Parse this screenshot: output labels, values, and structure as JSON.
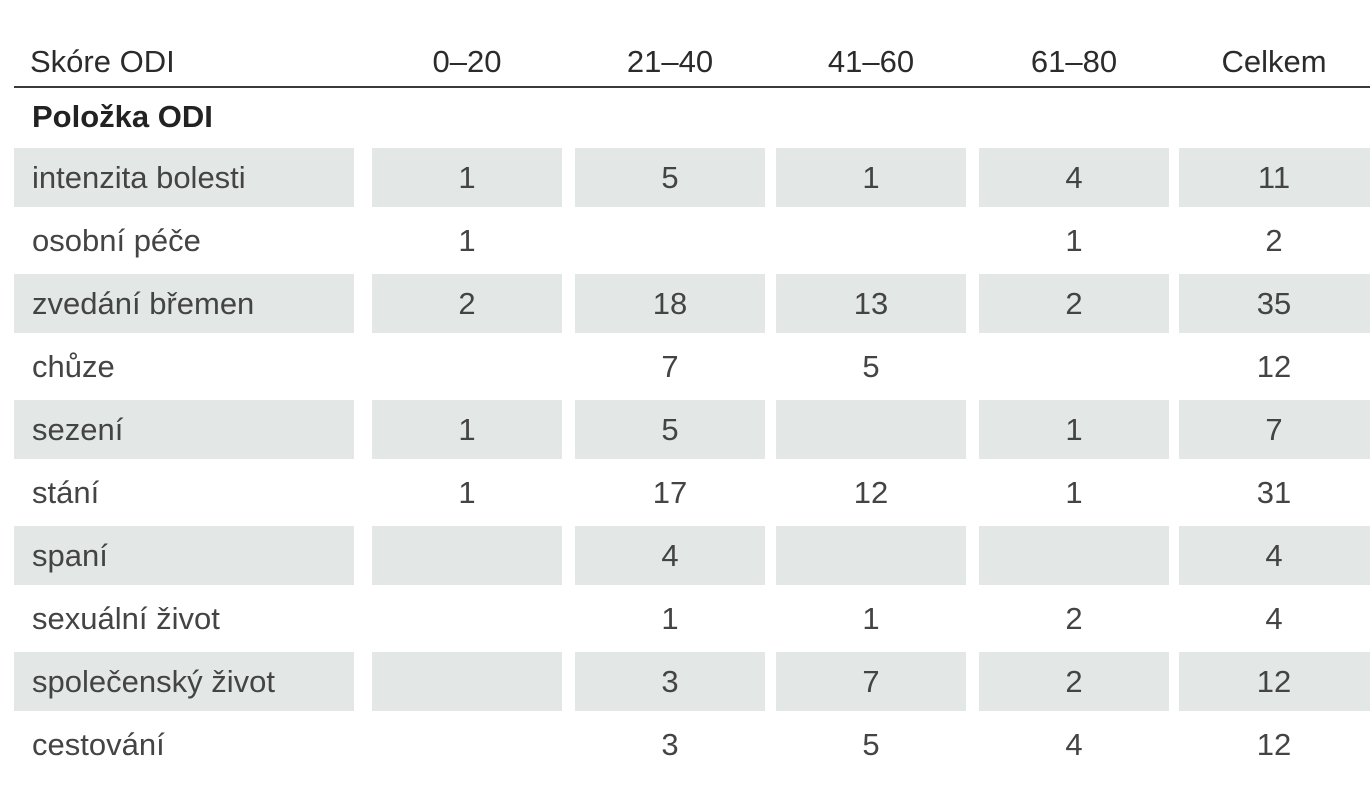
{
  "table": {
    "headers": [
      "Skóre ODI",
      "0–20",
      "21–40",
      "41–60",
      "61–80",
      "Celkem"
    ],
    "section_label": "Položka ODI",
    "rows": [
      {
        "label": "intenzita bolesti",
        "cells": [
          "1",
          "5",
          "1",
          "4",
          "11"
        ],
        "shaded": true
      },
      {
        "label": "osobní péče",
        "cells": [
          "1",
          "",
          "",
          "1",
          "2"
        ],
        "shaded": false
      },
      {
        "label": "zvedání břemen",
        "cells": [
          "2",
          "18",
          "13",
          "2",
          "35"
        ],
        "shaded": true
      },
      {
        "label": "chůze",
        "cells": [
          "",
          "7",
          "5",
          "",
          "12"
        ],
        "shaded": false
      },
      {
        "label": "sezení",
        "cells": [
          "1",
          "5",
          "",
          "1",
          "7"
        ],
        "shaded": true
      },
      {
        "label": "stání",
        "cells": [
          "1",
          "17",
          "12",
          "1",
          "31"
        ],
        "shaded": false
      },
      {
        "label": "spaní",
        "cells": [
          "",
          "4",
          "",
          "",
          "4"
        ],
        "shaded": true
      },
      {
        "label": "sexuální život",
        "cells": [
          "",
          "1",
          "1",
          "2",
          "4"
        ],
        "shaded": false
      },
      {
        "label": "společenský život",
        "cells": [
          "",
          "3",
          "7",
          "2",
          "12"
        ],
        "shaded": true
      },
      {
        "label": "cestování",
        "cells": [
          "",
          "3",
          "5",
          "4",
          "12"
        ],
        "shaded": false
      }
    ]
  },
  "colors": {
    "row_shade": "#e3e8e6",
    "rule": "#3a3a3a",
    "text": "#2b2b2b"
  }
}
